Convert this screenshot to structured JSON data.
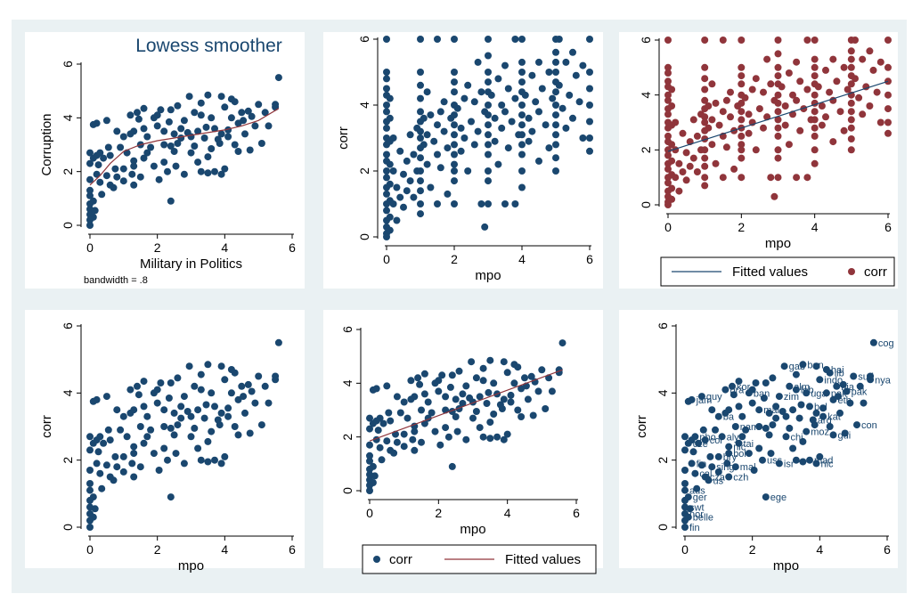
{
  "colors": {
    "outer_bg": "#eaf1f3",
    "plot_bg": "#ffffff",
    "navy": "#1a476f",
    "maroon": "#90353b",
    "axis": "#000000"
  },
  "chart_data": [
    {
      "type": "scatter",
      "title": "Lowess smoother",
      "xlabel": "Military in Politics",
      "ylabel": "Corruption",
      "note": "bandwidth = .8",
      "xlim": [
        0,
        6
      ],
      "ylim": [
        0,
        6
      ],
      "xticks": [
        0,
        2,
        4,
        6
      ],
      "yticks": [
        0,
        2,
        4,
        6
      ],
      "grid": false,
      "series": [
        {
          "kind": "points",
          "color": "#1a476f",
          "dataset": "country"
        },
        {
          "kind": "line",
          "color": "#90353b",
          "x": [
            0,
            0.3,
            0.6,
            1.0,
            1.5,
            2.0,
            2.5,
            3.0,
            3.5,
            4.0,
            4.5,
            5.0,
            5.6
          ],
          "y": [
            1.5,
            1.85,
            2.3,
            2.75,
            3.0,
            3.15,
            3.25,
            3.35,
            3.45,
            3.55,
            3.7,
            3.9,
            4.35
          ]
        }
      ]
    },
    {
      "type": "scatter",
      "title": "",
      "xlabel": "mpo",
      "ylabel": "corr",
      "xlim": [
        0,
        6
      ],
      "ylim": [
        0,
        6
      ],
      "xticks": [
        0,
        2,
        4,
        6
      ],
      "yticks": [
        0,
        2,
        4,
        6
      ],
      "grid": false,
      "series": [
        {
          "kind": "points",
          "color": "#1a476f",
          "dataset": "panel"
        }
      ]
    },
    {
      "type": "scatter",
      "title": "",
      "xlabel": "mpo",
      "ylabel": "",
      "xlim": [
        0,
        6
      ],
      "ylim": [
        0,
        6
      ],
      "xticks": [
        0,
        2,
        4,
        6
      ],
      "yticks": [
        0,
        2,
        4,
        6
      ],
      "grid": false,
      "legend": {
        "position": "bottom",
        "order": [
          "line",
          "points"
        ]
      },
      "series": [
        {
          "kind": "points",
          "color": "#90353b",
          "dataset": "panel",
          "name": "corr"
        },
        {
          "kind": "line",
          "color": "#1a476f",
          "x": [
            0,
            6
          ],
          "y": [
            1.95,
            4.5
          ],
          "name": "Fitted values"
        }
      ]
    },
    {
      "type": "scatter",
      "title": "",
      "xlabel": "mpo",
      "ylabel": "corr",
      "xlim": [
        0,
        6
      ],
      "ylim": [
        0,
        6
      ],
      "xticks": [
        0,
        2,
        4,
        6
      ],
      "yticks": [
        0,
        2,
        4,
        6
      ],
      "grid": false,
      "series": [
        {
          "kind": "points",
          "color": "#1a476f",
          "dataset": "country"
        }
      ]
    },
    {
      "type": "scatter",
      "title": "",
      "xlabel": "mpo",
      "ylabel": "",
      "xlim": [
        0,
        6
      ],
      "ylim": [
        0,
        6
      ],
      "xticks": [
        0,
        2,
        4,
        6
      ],
      "yticks": [
        0,
        2,
        4,
        6
      ],
      "grid": false,
      "legend": {
        "position": "bottom",
        "order": [
          "points",
          "line"
        ]
      },
      "series": [
        {
          "kind": "points",
          "color": "#1a476f",
          "dataset": "country",
          "name": "corr"
        },
        {
          "kind": "line",
          "color": "#90353b",
          "x": [
            0,
            5.6
          ],
          "y": [
            1.85,
            4.5
          ],
          "name": "Fitted values"
        }
      ]
    },
    {
      "type": "scatter",
      "title": "",
      "xlabel": "mpo",
      "ylabel": "corr",
      "xlim": [
        0,
        6
      ],
      "ylim": [
        0,
        6
      ],
      "xticks": [
        0,
        2,
        4,
        6
      ],
      "yticks": [
        0,
        2,
        4,
        6
      ],
      "grid": false,
      "series": [
        {
          "kind": "labeled-points",
          "color": "#1a476f",
          "dataset": "country"
        }
      ]
    }
  ],
  "datasets": {
    "country": [
      [
        5.6,
        5.5,
        "cog"
      ],
      [
        2.95,
        4.8,
        "gab"
      ],
      [
        3.5,
        4.85,
        "ban"
      ],
      [
        3.9,
        4.8,
        ""
      ],
      [
        4.3,
        4.6,
        "lib"
      ],
      [
        4.2,
        4.7,
        "hai"
      ],
      [
        5.0,
        4.5,
        "sud"
      ],
      [
        5.5,
        4.4,
        "nya"
      ],
      [
        4.0,
        4.4,
        "indo"
      ],
      [
        4.5,
        4.2,
        "nia"
      ],
      [
        3.1,
        4.2,
        "alm"
      ],
      [
        2.4,
        4.3,
        ""
      ],
      [
        1.2,
        4.1,
        "bra"
      ],
      [
        1.4,
        4.2,
        "kor"
      ],
      [
        1.9,
        4.0,
        "ban"
      ],
      [
        2.1,
        4.3,
        ""
      ],
      [
        2.8,
        3.9,
        "zim"
      ],
      [
        3.3,
        4.1,
        "leb"
      ],
      [
        3.6,
        4.0,
        "uga"
      ],
      [
        4.2,
        4.0,
        "pak"
      ],
      [
        4.8,
        4.05,
        "pak"
      ],
      [
        4.4,
        3.8,
        "eth"
      ],
      [
        3.7,
        3.6,
        "bol"
      ],
      [
        4.1,
        3.55,
        ""
      ],
      [
        0.2,
        3.8,
        "jam"
      ],
      [
        0.5,
        3.9,
        "guy"
      ],
      [
        0.8,
        3.5,
        ""
      ],
      [
        1.0,
        3.3,
        "ba"
      ],
      [
        1.3,
        3.5,
        ""
      ],
      [
        1.6,
        3.6,
        ""
      ],
      [
        2.0,
        3.7,
        ""
      ],
      [
        2.2,
        3.5,
        "mal"
      ],
      [
        2.5,
        3.4,
        ""
      ],
      [
        2.7,
        3.6,
        ""
      ],
      [
        3.0,
        3.3,
        ""
      ],
      [
        3.2,
        3.5,
        ""
      ],
      [
        3.4,
        3.25,
        ""
      ],
      [
        3.8,
        3.2,
        "arg"
      ],
      [
        4.1,
        3.3,
        "kat"
      ],
      [
        4.6,
        3.4,
        ""
      ],
      [
        5.1,
        3.05,
        "con"
      ],
      [
        4.4,
        2.75,
        "gui"
      ],
      [
        3.6,
        2.85,
        "moz"
      ],
      [
        1.5,
        3.0,
        "nam"
      ],
      [
        1.8,
        2.9,
        ""
      ],
      [
        2.2,
        3.0,
        ""
      ],
      [
        2.5,
        2.75,
        ""
      ],
      [
        3.0,
        2.7,
        "chi"
      ],
      [
        1.1,
        2.7,
        "aly"
      ],
      [
        0.6,
        2.6,
        "col"
      ],
      [
        0.3,
        2.7,
        "pho"
      ],
      [
        0.1,
        2.5,
        "cze"
      ],
      [
        0.4,
        2.5,
        ""
      ],
      [
        1.3,
        2.4,
        "nic"
      ],
      [
        1.6,
        2.5,
        "tai"
      ],
      [
        1.3,
        2.2,
        "bol"
      ],
      [
        1.0,
        2.1,
        "bry"
      ],
      [
        2.3,
        2.0,
        "uss"
      ],
      [
        2.8,
        1.9,
        "isr"
      ],
      [
        3.3,
        2.0,
        ""
      ],
      [
        3.7,
        2.0,
        "mad"
      ],
      [
        3.5,
        1.95,
        ""
      ],
      [
        3.9,
        1.9,
        "nic"
      ],
      [
        0.2,
        1.9,
        "fin"
      ],
      [
        0.5,
        1.85,
        ""
      ],
      [
        0.8,
        1.8,
        "sing"
      ],
      [
        1.5,
        1.8,
        "mal"
      ],
      [
        1.0,
        1.65,
        ""
      ],
      [
        0.3,
        1.6,
        "cal"
      ],
      [
        0.6,
        1.5,
        "cza"
      ],
      [
        0.7,
        1.4,
        "us"
      ],
      [
        1.3,
        1.5,
        "czh"
      ],
      [
        0.0,
        1.3,
        ""
      ],
      [
        0.0,
        1.1,
        "aus"
      ],
      [
        0.1,
        0.9,
        "ger"
      ],
      [
        2.4,
        0.9,
        "ege"
      ],
      [
        0.0,
        0.6,
        "swt"
      ],
      [
        0.0,
        0.4,
        "nor"
      ],
      [
        0.1,
        0.3,
        "belle"
      ],
      [
        0.0,
        0.2,
        ""
      ],
      [
        0.0,
        0.0,
        "fin"
      ],
      [
        0.0,
        2.7,
        ""
      ],
      [
        0.0,
        2.3,
        ""
      ],
      [
        0.0,
        1.7,
        ""
      ],
      [
        0.0,
        0.8,
        ""
      ],
      [
        0.1,
        3.75,
        ""
      ],
      [
        0.2,
        2.6,
        ""
      ],
      [
        2.0,
        4.1,
        ""
      ],
      [
        1.7,
        3.3,
        ""
      ],
      [
        2.6,
        3.05,
        ""
      ],
      [
        2.9,
        3.45,
        ""
      ],
      [
        3.45,
        3.65,
        ""
      ],
      [
        3.9,
        3.4,
        ""
      ],
      [
        4.7,
        4.25,
        ""
      ],
      [
        5.5,
        4.5,
        ""
      ],
      [
        3.5,
        2.55,
        ""
      ],
      [
        1.9,
        2.2,
        ""
      ],
      [
        2.2,
        2.35,
        ""
      ],
      [
        2.4,
        2.95,
        ""
      ],
      [
        1.7,
        2.7,
        ""
      ],
      [
        2.7,
        3.25,
        ""
      ],
      [
        3.1,
        2.95,
        ""
      ],
      [
        4.3,
        3.0,
        ""
      ],
      [
        4.9,
        3.7,
        ""
      ],
      [
        2.35,
        3.85,
        ""
      ],
      [
        1.45,
        3.95,
        ""
      ],
      [
        1.2,
        3.4,
        ""
      ],
      [
        0.9,
        2.9,
        ""
      ],
      [
        3.85,
        3.05,
        ""
      ],
      [
        4.55,
        3.9,
        ""
      ],
      [
        2.6,
        4.45,
        ""
      ],
      [
        1.6,
        4.35,
        ""
      ],
      [
        3.3,
        4.55,
        ""
      ],
      [
        5.3,
        3.7,
        ""
      ],
      [
        2.05,
        1.7,
        ""
      ],
      [
        1.25,
        1.9,
        ""
      ],
      [
        0.75,
        2.1,
        ""
      ],
      [
        0.55,
        2.9,
        ""
      ],
      [
        0.25,
        2.25,
        ""
      ],
      [
        0.35,
        1.15,
        ""
      ],
      [
        0.15,
        0.55,
        ""
      ],
      [
        3.2,
        2.35,
        ""
      ],
      [
        4.0,
        2.1,
        ""
      ],
      [
        2.55,
        2.2,
        ""
      ],
      [
        4.75,
        2.8,
        ""
      ],
      [
        5.2,
        4.2,
        ""
      ]
    ],
    "panel": [
      [
        0,
        6
      ],
      [
        1,
        6
      ],
      [
        1.5,
        6
      ],
      [
        2,
        6
      ],
      [
        3,
        6
      ],
      [
        3.8,
        6
      ],
      [
        4,
        6
      ],
      [
        5,
        6
      ],
      [
        5.1,
        6
      ],
      [
        6,
        6
      ],
      [
        0,
        5
      ],
      [
        0,
        4.8
      ],
      [
        0,
        4.5
      ],
      [
        0,
        4.3
      ],
      [
        0,
        4
      ],
      [
        0,
        3.8
      ],
      [
        0,
        3.5
      ],
      [
        0,
        3.3
      ],
      [
        0,
        3
      ],
      [
        0,
        2.8
      ],
      [
        0,
        2.5
      ],
      [
        0,
        2.3
      ],
      [
        0,
        2
      ],
      [
        0,
        1.8
      ],
      [
        0,
        1.5
      ],
      [
        0,
        1.3
      ],
      [
        0,
        1
      ],
      [
        0,
        0.8
      ],
      [
        0,
        0.5
      ],
      [
        0,
        0.3
      ],
      [
        0,
        0.1
      ],
      [
        0,
        0
      ],
      [
        0.1,
        4.2
      ],
      [
        0.1,
        3.6
      ],
      [
        0.1,
        2.9
      ],
      [
        0.1,
        2.2
      ],
      [
        0.1,
        1.6
      ],
      [
        0.1,
        1.1
      ],
      [
        0.1,
        0.6
      ],
      [
        0.1,
        0.2
      ],
      [
        0.2,
        3
      ],
      [
        0.2,
        2
      ],
      [
        0.2,
        1
      ],
      [
        0.3,
        1.5
      ],
      [
        0.3,
        0.5
      ],
      [
        0.4,
        2.6
      ],
      [
        0.4,
        1.2
      ],
      [
        0.5,
        1.9
      ],
      [
        0.5,
        0.9
      ],
      [
        0.6,
        2.3
      ],
      [
        0.6,
        1.4
      ],
      [
        0.7,
        3.1
      ],
      [
        0.7,
        1.7
      ],
      [
        0.8,
        2.5
      ],
      [
        0.8,
        1.2
      ],
      [
        0.9,
        3.3
      ],
      [
        0.9,
        2
      ],
      [
        1,
        5
      ],
      [
        1,
        4.6
      ],
      [
        1,
        4.2
      ],
      [
        1,
        3.8
      ],
      [
        1,
        3.5
      ],
      [
        1,
        3.2
      ],
      [
        1,
        3
      ],
      [
        1,
        2.7
      ],
      [
        1,
        2.4
      ],
      [
        1,
        2
      ],
      [
        1,
        1.7
      ],
      [
        1,
        1.4
      ],
      [
        1,
        1
      ],
      [
        1,
        0.7
      ],
      [
        1.1,
        3.6
      ],
      [
        1.1,
        2.8
      ],
      [
        1.2,
        4.4
      ],
      [
        1.2,
        3.1
      ],
      [
        1.2,
        2.2
      ],
      [
        1.3,
        3.7
      ],
      [
        1.3,
        1.5
      ],
      [
        1.4,
        2.9
      ],
      [
        1.5,
        3.4
      ],
      [
        1.5,
        2.5
      ],
      [
        1.5,
        1
      ],
      [
        1.6,
        3.8
      ],
      [
        1.6,
        2.1
      ],
      [
        1.7,
        4.1
      ],
      [
        1.7,
        3.2
      ],
      [
        1.8,
        2.7
      ],
      [
        1.8,
        1.3
      ],
      [
        1.9,
        3.6
      ],
      [
        2,
        5
      ],
      [
        2,
        4.7
      ],
      [
        2,
        4.4
      ],
      [
        2,
        4
      ],
      [
        2,
        3.7
      ],
      [
        2,
        3.4
      ],
      [
        2,
        3.1
      ],
      [
        2,
        2.8
      ],
      [
        2,
        2.5
      ],
      [
        2,
        2.2
      ],
      [
        2,
        2
      ],
      [
        2,
        1.7
      ],
      [
        2,
        1
      ],
      [
        2.1,
        3.9
      ],
      [
        2.2,
        3.3
      ],
      [
        2.2,
        2.6
      ],
      [
        2.3,
        4.2
      ],
      [
        2.3,
        3
      ],
      [
        2.4,
        4.6
      ],
      [
        2.4,
        2
      ],
      [
        2.5,
        3.5
      ],
      [
        2.6,
        4.1
      ],
      [
        2.6,
        2.8
      ],
      [
        2.7,
        5.3
      ],
      [
        2.7,
        3.2
      ],
      [
        2.8,
        4.4
      ],
      [
        2.8,
        1
      ],
      [
        2.9,
        3.8
      ],
      [
        2.9,
        0.3
      ],
      [
        3,
        5.5
      ],
      [
        3,
        5
      ],
      [
        3,
        4.7
      ],
      [
        3,
        4.4
      ],
      [
        3,
        4
      ],
      [
        3,
        3.7
      ],
      [
        3,
        3.4
      ],
      [
        3,
        3.1
      ],
      [
        3,
        2.8
      ],
      [
        3,
        2.5
      ],
      [
        3,
        2
      ],
      [
        3,
        1.7
      ],
      [
        3,
        1
      ],
      [
        3.1,
        4.3
      ],
      [
        3.2,
        3.6
      ],
      [
        3.2,
        2.9
      ],
      [
        3.3,
        4.8
      ],
      [
        3.3,
        2.2
      ],
      [
        3.4,
        4
      ],
      [
        3.4,
        3.3
      ],
      [
        3.5,
        5.2
      ],
      [
        3.5,
        3.8
      ],
      [
        3.5,
        1
      ],
      [
        3.6,
        4.5
      ],
      [
        3.6,
        2.7
      ],
      [
        3.7,
        3.5
      ],
      [
        3.8,
        4.2
      ],
      [
        3.8,
        1
      ],
      [
        3.9,
        3.1
      ],
      [
        4,
        5.3
      ],
      [
        4,
        5
      ],
      [
        4,
        4.7
      ],
      [
        4,
        4.4
      ],
      [
        4,
        4
      ],
      [
        4,
        3.7
      ],
      [
        4,
        3.4
      ],
      [
        4,
        3.1
      ],
      [
        4,
        2.8
      ],
      [
        4,
        2.5
      ],
      [
        4,
        2
      ],
      [
        4,
        1.5
      ],
      [
        4.1,
        4.3
      ],
      [
        4.2,
        3.6
      ],
      [
        4.2,
        2.9
      ],
      [
        4.3,
        4.9
      ],
      [
        4.3,
        3.2
      ],
      [
        4.4,
        4.1
      ],
      [
        4.5,
        5.3
      ],
      [
        4.5,
        3.8
      ],
      [
        4.5,
        2.3
      ],
      [
        4.6,
        4.5
      ],
      [
        4.7,
        3.4
      ],
      [
        4.8,
        5
      ],
      [
        4.8,
        2.7
      ],
      [
        4.9,
        4.2
      ],
      [
        5,
        5.6
      ],
      [
        5,
        5.3
      ],
      [
        5,
        5
      ],
      [
        5,
        4.7
      ],
      [
        5,
        4.4
      ],
      [
        5,
        4
      ],
      [
        5,
        3.7
      ],
      [
        5,
        3.4
      ],
      [
        5,
        3.1
      ],
      [
        5,
        2.8
      ],
      [
        5,
        2.4
      ],
      [
        5,
        2
      ],
      [
        5.1,
        4.6
      ],
      [
        5.2,
        3.9
      ],
      [
        5.3,
        5.3
      ],
      [
        5.3,
        3.3
      ],
      [
        5.4,
        4.3
      ],
      [
        5.5,
        5.6
      ],
      [
        5.5,
        3.6
      ],
      [
        5.6,
        4.9
      ],
      [
        5.7,
        4.1
      ],
      [
        5.8,
        5.2
      ],
      [
        5.8,
        3
      ],
      [
        6,
        5
      ],
      [
        6,
        4.5
      ],
      [
        6,
        4
      ],
      [
        6,
        3.5
      ],
      [
        6,
        3
      ],
      [
        6,
        2.6
      ]
    ]
  }
}
